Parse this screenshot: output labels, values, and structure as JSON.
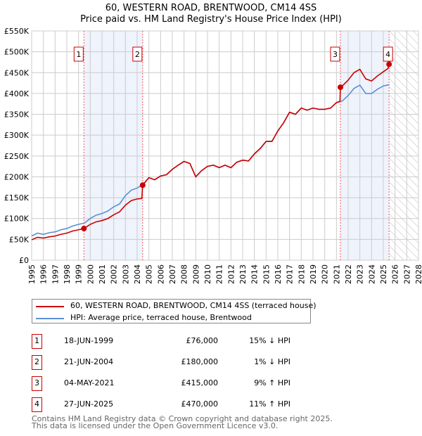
{
  "chart_data": {
    "type": "line",
    "title": "60, WESTERN ROAD, BRENTWOOD, CM14 4SS",
    "subtitle": "Price paid vs. HM Land Registry's House Price Index (HPI)",
    "xlim": [
      1995,
      2028
    ],
    "ylim": [
      0,
      550000
    ],
    "x_ticks": [
      "1995",
      "1996",
      "1997",
      "1998",
      "1999",
      "2000",
      "2001",
      "2002",
      "2003",
      "2004",
      "2005",
      "2006",
      "2007",
      "2008",
      "2009",
      "2010",
      "2011",
      "2012",
      "2013",
      "2014",
      "2015",
      "2016",
      "2017",
      "2018",
      "2019",
      "2020",
      "2021",
      "2022",
      "2023",
      "2024",
      "2025",
      "2026",
      "2027",
      "2028"
    ],
    "y_ticks": [
      {
        "v": 0,
        "label": "£0"
      },
      {
        "v": 50000,
        "label": "£50K"
      },
      {
        "v": 100000,
        "label": "£100K"
      },
      {
        "v": 150000,
        "label": "£150K"
      },
      {
        "v": 200000,
        "label": "£200K"
      },
      {
        "v": 250000,
        "label": "£250K"
      },
      {
        "v": 300000,
        "label": "£300K"
      },
      {
        "v": 350000,
        "label": "£350K"
      },
      {
        "v": 400000,
        "label": "£400K"
      },
      {
        "v": 450000,
        "label": "£450K"
      },
      {
        "v": 500000,
        "label": "£500K"
      },
      {
        "v": 550000,
        "label": "£550K"
      }
    ],
    "grid": true,
    "forecast_from": 2025.5,
    "colors": {
      "property": "#cc0000",
      "hpi": "#5b8fd4",
      "shade": "#eef3fc"
    },
    "series": [
      {
        "name": "60, WESTERN ROAD, BRENTWOOD, CM14 4SS (terraced house)",
        "x": [
          1995,
          1995.5,
          1996,
          1996.5,
          1997,
          1997.5,
          1998,
          1998.5,
          1999,
          1999.46,
          2000,
          2000.5,
          2001,
          2001.5,
          2002,
          2002.5,
          2003,
          2003.5,
          2004,
          2004.4,
          2004.47,
          2005,
          2005.5,
          2006,
          2006.5,
          2007,
          2007.5,
          2008,
          2008.5,
          2009,
          2009.5,
          2010,
          2010.5,
          2011,
          2011.5,
          2012,
          2012.5,
          2013,
          2013.5,
          2014,
          2014.5,
          2015,
          2015.5,
          2016,
          2016.5,
          2017,
          2017.5,
          2018,
          2018.5,
          2019,
          2019.5,
          2020,
          2020.5,
          2021,
          2021.3,
          2021.34,
          2021.5,
          2022,
          2022.5,
          2023,
          2023.5,
          2024,
          2024.5,
          2025,
          2025.4,
          2025.49
        ],
        "values": [
          49000,
          55000,
          53000,
          56000,
          58000,
          62000,
          65000,
          70000,
          73000,
          76000,
          86000,
          92000,
          95000,
          100000,
          109000,
          116000,
          132000,
          143000,
          147000,
          148000,
          180000,
          198000,
          193000,
          202000,
          205000,
          218000,
          228000,
          237000,
          232000,
          200000,
          215000,
          225000,
          228000,
          222000,
          228000,
          222000,
          235000,
          240000,
          238000,
          255000,
          268000,
          285000,
          285000,
          310000,
          330000,
          355000,
          350000,
          365000,
          360000,
          365000,
          362000,
          362000,
          365000,
          378000,
          381000,
          415000,
          418000,
          432000,
          450000,
          458000,
          435000,
          430000,
          442000,
          452000,
          460000,
          470000
        ]
      },
      {
        "name": "HPI: Average price, terraced house, Brentwood",
        "x": [
          1995,
          1995.5,
          1996,
          1996.5,
          1997,
          1997.5,
          1998,
          1998.5,
          1999,
          1999.5,
          2000,
          2000.5,
          2001,
          2001.5,
          2002,
          2002.5,
          2003,
          2003.5,
          2004,
          2004.5,
          2005,
          2005.5,
          2006,
          2006.5,
          2007,
          2007.5,
          2008,
          2008.5,
          2009,
          2009.5,
          2010,
          2010.5,
          2011,
          2011.5,
          2012,
          2012.5,
          2013,
          2013.5,
          2014,
          2014.5,
          2015,
          2015.5,
          2016,
          2016.5,
          2017,
          2017.5,
          2018,
          2018.5,
          2019,
          2019.5,
          2020,
          2020.5,
          2021,
          2021.5,
          2022,
          2022.5,
          2023,
          2023.5,
          2024,
          2024.5,
          2025,
          2025.5
        ],
        "values": [
          58000,
          65000,
          62000,
          66000,
          68000,
          73000,
          76000,
          82000,
          86000,
          89000,
          100000,
          108000,
          112000,
          118000,
          128000,
          135000,
          155000,
          168000,
          173000,
          182000,
          198000,
          193000,
          202000,
          205000,
          218000,
          228000,
          237000,
          232000,
          200000,
          215000,
          225000,
          228000,
          222000,
          228000,
          222000,
          235000,
          240000,
          238000,
          255000,
          268000,
          285000,
          285000,
          310000,
          330000,
          355000,
          350000,
          365000,
          360000,
          365000,
          362000,
          362000,
          365000,
          378000,
          382000,
          395000,
          412000,
          420000,
          400000,
          400000,
          410000,
          418000,
          421000
        ]
      }
    ],
    "sales": [
      {
        "label": "1",
        "x": 1999.46,
        "date": "18-JUN-1999",
        "price": 76000,
        "price_text": "£76,000",
        "hpi_text": "15% ↓ HPI"
      },
      {
        "label": "2",
        "x": 2004.47,
        "date": "21-JUN-2004",
        "price": 180000,
        "price_text": "£180,000",
        "hpi_text": "1% ↓ HPI"
      },
      {
        "label": "3",
        "x": 2021.34,
        "date": "04-MAY-2021",
        "price": 415000,
        "price_text": "£415,000",
        "hpi_text": "9% ↑ HPI"
      },
      {
        "label": "4",
        "x": 2025.49,
        "date": "27-JUN-2025",
        "price": 470000,
        "price_text": "£470,000",
        "hpi_text": "11% ↑ HPI"
      }
    ]
  },
  "legend": {
    "property": "60, WESTERN ROAD, BRENTWOOD, CM14 4SS (terraced house)",
    "hpi": "HPI: Average price, terraced house, Brentwood"
  },
  "footer": [
    "Contains HM Land Registry data © Crown copyright and database right 2025.",
    "This data is licensed under the Open Government Licence v3.0."
  ]
}
